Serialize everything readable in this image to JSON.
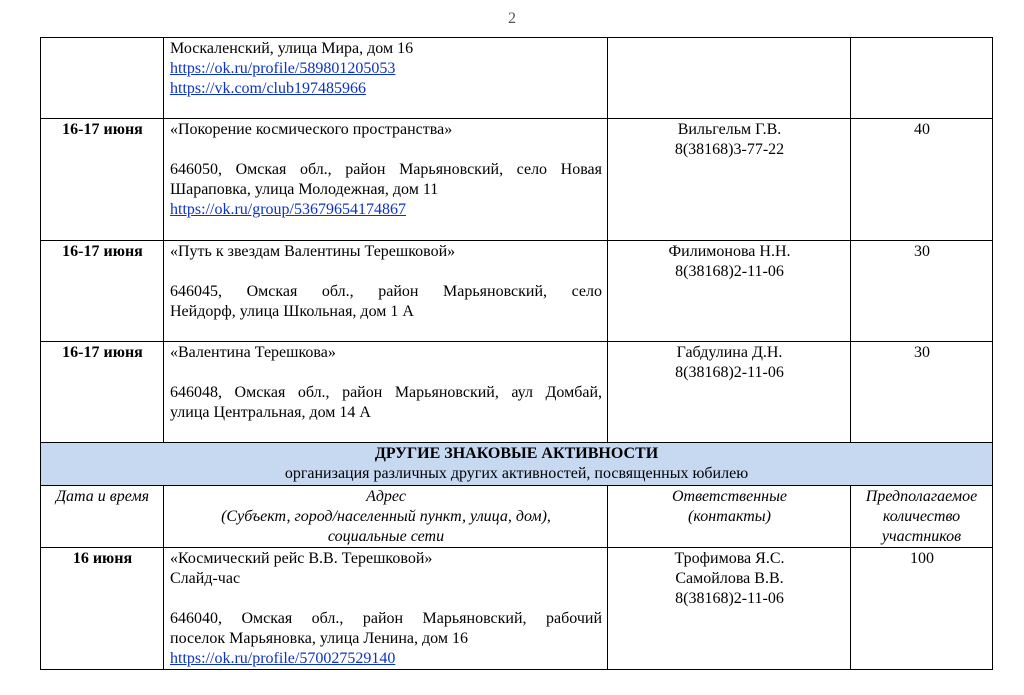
{
  "page_number": "2",
  "rows": [
    {
      "date": "",
      "address_lines": [
        "Москаленский, улица Мира, дом 16"
      ],
      "links": [
        "https://ok.ru/profile/589801205053",
        "https://vk.com/club197485966"
      ],
      "contacts": [],
      "count": ""
    },
    {
      "date": "16-17 июня",
      "title": "«Покорение космического пространства»",
      "address_justified": "646050, Омская обл., район Марьяновский, село Новая",
      "address_last": "Шараповка, улица Молодежная, дом 11",
      "links": [
        "https://ok.ru/group/53679654174867"
      ],
      "contacts": [
        "Вильгельм Г.В.",
        "8(38168)3-77-22"
      ],
      "count": "40"
    },
    {
      "date": "16-17 июня",
      "title": "«Путь к звездам Валентины Терешковой»",
      "address_justified": "646045, Омская обл., район Марьяновский, село",
      "address_last": "Нейдорф, улица Школьная, дом 1 А",
      "contacts": [
        "Филимонова Н.Н.",
        "8(38168)2-11-06"
      ],
      "count": "30"
    },
    {
      "date": "16-17 июня",
      "title": "«Валентина Терешкова»",
      "address_justified": "646048, Омская обл., район Марьяновский, аул Домбай,",
      "address_last": "улица Центральная, дом 14 А",
      "contacts": [
        "Габдулина Д.Н.",
        "8(38168)2-11-06"
      ],
      "count": "30"
    }
  ],
  "section": {
    "title": "ДРУГИЕ ЗНАКОВЫЕ АКТИВНОСТИ",
    "subtitle": "организация различных других активностей, посвященных юбилею",
    "band_color": "#c6d9f0"
  },
  "headers": {
    "date": "Дата и время",
    "address": [
      "Адрес",
      "(Субъект, город/населенный пункт, улица, дом),",
      "социальные сети"
    ],
    "contacts": [
      "Ответственные",
      "(контакты)"
    ],
    "count": [
      "Предполагаемое",
      "количество",
      "участников"
    ]
  },
  "last_row": {
    "date": "16 июня",
    "title": "«Космический рейс В.В. Терешковой»",
    "subtitle": "Слайд-час",
    "address_justified": "646040, Омская обл., район Марьяновский, рабочий",
    "address_last": "поселок Марьяновка, улица Ленина, дом 16",
    "link": "https://ok.ru/profile/570027529140",
    "contacts": [
      "Трофимова Я.С.",
      "Самойлова В.В.",
      "8(38168)2-11-06"
    ],
    "count": "100"
  },
  "colors": {
    "link": "#0b32c8"
  }
}
